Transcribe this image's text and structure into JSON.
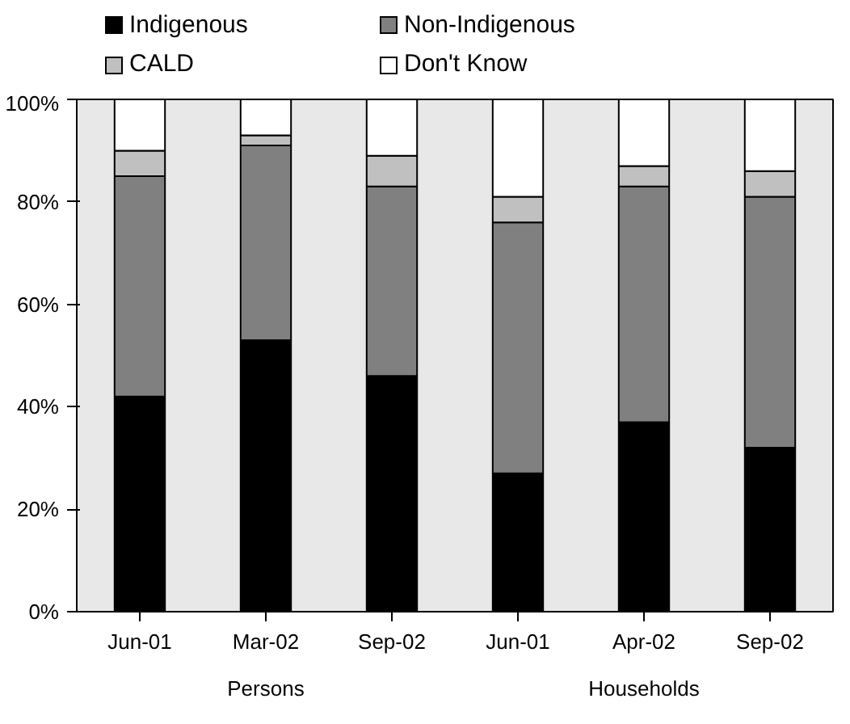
{
  "chart_data": {
    "type": "bar",
    "stacked": true,
    "categories": [
      "Jun-01",
      "Mar-02",
      "Sep-02",
      "Jun-01",
      "Apr-02",
      "Sep-02"
    ],
    "series": [
      {
        "name": "Indigenous",
        "color": "#000000",
        "values": [
          42,
          53,
          46,
          27,
          37,
          32
        ]
      },
      {
        "name": "Non-Indigenous",
        "color": "#808080",
        "values": [
          43,
          38,
          37,
          49,
          46,
          49
        ]
      },
      {
        "name": "CALD",
        "color": "#c0c0c0",
        "values": [
          5,
          2,
          6,
          5,
          4,
          5
        ]
      },
      {
        "name": "Don't Know",
        "color": "#ffffff",
        "values": [
          10,
          7,
          11,
          19,
          13,
          14
        ]
      }
    ],
    "ylim": [
      0,
      100
    ],
    "yticks": [
      {
        "value": 0,
        "label": "0%"
      },
      {
        "value": 20,
        "label": "20%"
      },
      {
        "value": 40,
        "label": "40%"
      },
      {
        "value": 60,
        "label": "60%"
      },
      {
        "value": 80,
        "label": "80%"
      },
      {
        "value": 100,
        "label": "100%"
      }
    ],
    "legend": "top",
    "annotations": [
      "Persons",
      "Households"
    ]
  }
}
